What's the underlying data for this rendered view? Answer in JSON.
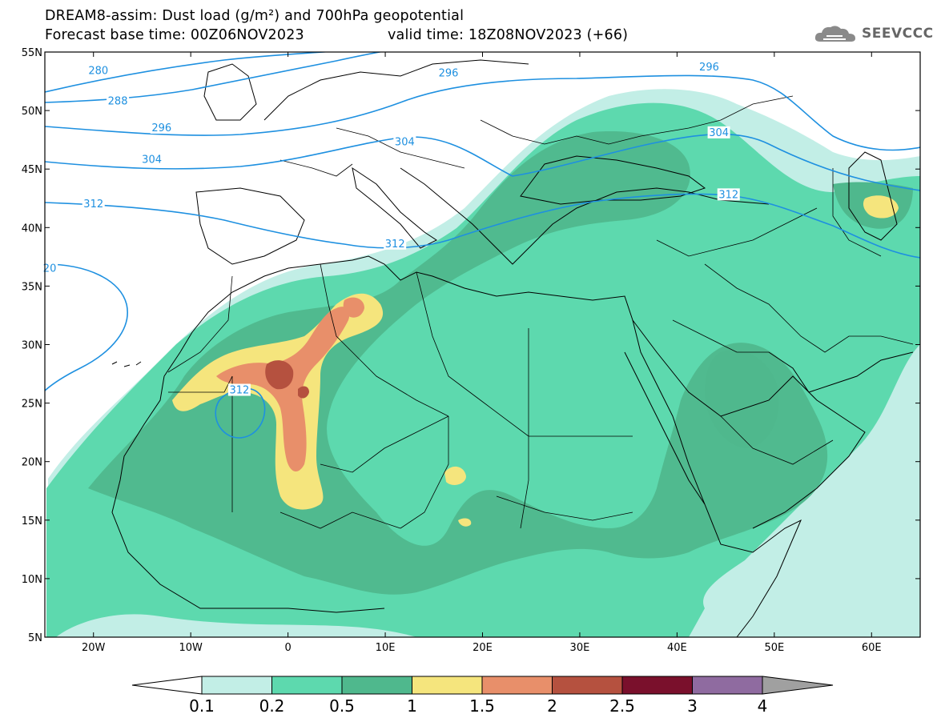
{
  "header": {
    "title_line1": "DREAM8-assim: Dust load (g/m²) and 700hPa geopotential",
    "base_time": "Forecast base time: 00Z06NOV2023",
    "valid_time": "valid time: 18Z08NOV2023 (+66)"
  },
  "logo": {
    "text": "SEEVCCC",
    "icon": "cloud-logo-icon"
  },
  "map": {
    "lon_range": [
      -25,
      65
    ],
    "lat_range": [
      5,
      55
    ],
    "lat_ticks": [
      {
        "value": 55,
        "label": "55N"
      },
      {
        "value": 50,
        "label": "50N"
      },
      {
        "value": 45,
        "label": "45N"
      },
      {
        "value": 40,
        "label": "40N"
      },
      {
        "value": 35,
        "label": "35N"
      },
      {
        "value": 30,
        "label": "30N"
      },
      {
        "value": 25,
        "label": "25N"
      },
      {
        "value": 20,
        "label": "20N"
      },
      {
        "value": 15,
        "label": "15N"
      },
      {
        "value": 10,
        "label": "10N"
      },
      {
        "value": 5,
        "label": "5N"
      }
    ],
    "lon_ticks": [
      {
        "value": -20,
        "label": "20W"
      },
      {
        "value": -10,
        "label": "10W"
      },
      {
        "value": 0,
        "label": "0"
      },
      {
        "value": 10,
        "label": "10E"
      },
      {
        "value": 20,
        "label": "20E"
      },
      {
        "value": 30,
        "label": "30E"
      },
      {
        "value": 40,
        "label": "40E"
      },
      {
        "value": 50,
        "label": "50E"
      },
      {
        "value": 60,
        "label": "60E"
      }
    ],
    "contour_color": "#1e90e0",
    "contour_labels": [
      {
        "text": "280",
        "lon": -19.5,
        "lat": 53.4
      },
      {
        "text": "288",
        "lon": -17.5,
        "lat": 50.8
      },
      {
        "text": "296",
        "lon": -13,
        "lat": 48.5
      },
      {
        "text": "304",
        "lon": -14,
        "lat": 45.8
      },
      {
        "text": "312",
        "lon": -20,
        "lat": 42
      },
      {
        "text": "20",
        "lon": -24.5,
        "lat": 36.5
      },
      {
        "text": "312",
        "lon": -5,
        "lat": 26.1
      },
      {
        "text": "312",
        "lon": 11,
        "lat": 38.6
      },
      {
        "text": "304",
        "lon": 12,
        "lat": 47.3
      },
      {
        "text": "296",
        "lon": 16.5,
        "lat": 53.2
      },
      {
        "text": "296",
        "lon": 43.3,
        "lat": 53.7
      },
      {
        "text": "304",
        "lon": 44.3,
        "lat": 48.1
      },
      {
        "text": "312",
        "lon": 45.3,
        "lat": 42.8
      }
    ]
  },
  "colorbar": {
    "colors": [
      "#c2eee6",
      "#5dd9ae",
      "#4fb88d",
      "#f5e57d",
      "#e88f6a",
      "#b5513f",
      "#7a102c",
      "#8f6ba0"
    ],
    "under_color": "#ffffff",
    "over_color": "#a0a0a0",
    "tick_labels": [
      "0.1",
      "0.2",
      "0.5",
      "1",
      "1.5",
      "2",
      "2.5",
      "3",
      "4"
    ]
  }
}
